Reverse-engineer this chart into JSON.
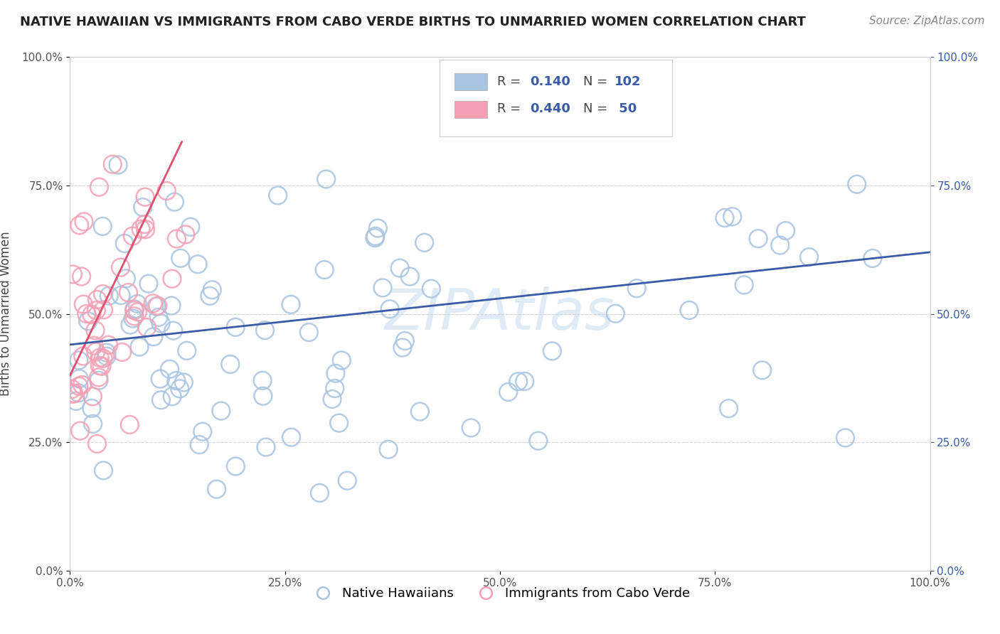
{
  "title": "NATIVE HAWAIIAN VS IMMIGRANTS FROM CABO VERDE BIRTHS TO UNMARRIED WOMEN CORRELATION CHART",
  "source": "Source: ZipAtlas.com",
  "ylabel": "Births to Unmarried Women",
  "xlabel": "",
  "xlim": [
    0.0,
    1.0
  ],
  "ylim": [
    0.0,
    1.0
  ],
  "xticks": [
    0.0,
    0.25,
    0.5,
    0.75,
    1.0
  ],
  "yticks": [
    0.0,
    0.25,
    0.5,
    0.75,
    1.0
  ],
  "xticklabels": [
    "0.0%",
    "25.0%",
    "50.0%",
    "75.0%",
    "100.0%"
  ],
  "yticklabels": [
    "0.0%",
    "25.0%",
    "50.0%",
    "75.0%",
    "100.0%"
  ],
  "blue_R": 0.14,
  "blue_N": 102,
  "pink_R": 0.44,
  "pink_N": 50,
  "blue_color": "#a8c4e0",
  "pink_color": "#f4a0b4",
  "blue_line_color": "#3a5ca8",
  "pink_line_color": "#e05070",
  "legend_text_color": "#3a5ca8",
  "legend_label_blue": "Native Hawaiians",
  "legend_label_pink": "Immigrants from Cabo Verde",
  "watermark": "ZIPAtlas",
  "title_fontsize": 13,
  "source_fontsize": 11
}
